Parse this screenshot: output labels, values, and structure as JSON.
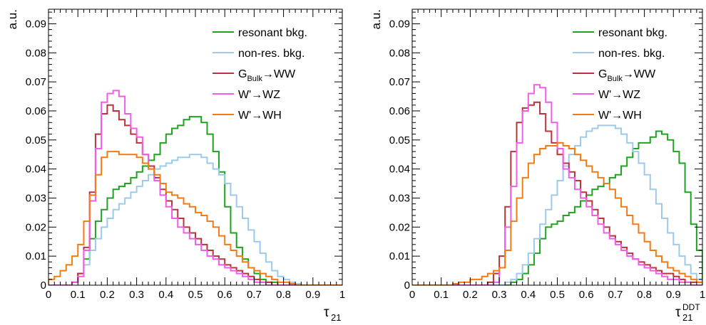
{
  "chart_data": [
    {
      "type": "line",
      "step_histogram": true,
      "ylabel": "a.u.",
      "xlabel": "τ",
      "xlabel_sub": "21",
      "xlim": [
        0,
        1
      ],
      "ylim": [
        0,
        0.095
      ],
      "x_ticks": [
        0,
        0.1,
        0.2,
        0.3,
        0.4,
        0.5,
        0.6,
        0.7,
        0.8,
        0.9,
        1
      ],
      "x_tick_labels": [
        "0",
        "0.1",
        "0.2",
        "0.3",
        "0.4",
        "0.5",
        "0.6",
        "0.7",
        "0.8",
        "0.9",
        "1"
      ],
      "y_ticks": [
        0,
        0.01,
        0.02,
        0.03,
        0.04,
        0.05,
        0.06,
        0.07,
        0.08,
        0.09
      ],
      "y_tick_labels": [
        "0",
        "0.01",
        "0.02",
        "0.03",
        "0.04",
        "0.05",
        "0.06",
        "0.07",
        "0.08",
        "0.09"
      ],
      "legend_position": "top-right",
      "bin_edges": [
        0,
        0.02,
        0.04,
        0.06,
        0.08,
        0.1,
        0.12,
        0.14,
        0.16,
        0.18,
        0.2,
        0.22,
        0.24,
        0.26,
        0.28,
        0.3,
        0.32,
        0.34,
        0.36,
        0.38,
        0.4,
        0.42,
        0.44,
        0.46,
        0.48,
        0.5,
        0.52,
        0.54,
        0.56,
        0.58,
        0.6,
        0.62,
        0.64,
        0.66,
        0.68,
        0.7,
        0.72,
        0.74,
        0.76,
        0.78,
        0.8,
        0.82,
        0.84,
        0.86,
        0.88,
        0.9,
        0.92,
        0.94,
        0.96,
        0.98,
        1.0
      ],
      "series": [
        {
          "name": "resonant bkg.",
          "color": "#1fa21f",
          "values": [
            0,
            0,
            0,
            0,
            0.001,
            0.004,
            0.009,
            0.016,
            0.022,
            0.026,
            0.03,
            0.033,
            0.034,
            0.035,
            0.037,
            0.039,
            0.041,
            0.043,
            0.045,
            0.049,
            0.052,
            0.054,
            0.055,
            0.057,
            0.058,
            0.058,
            0.056,
            0.052,
            0.046,
            0.039,
            0.027,
            0.018,
            0.013,
            0.009,
            0.006,
            0.004,
            0.002,
            0.001,
            0.001,
            0,
            0,
            0,
            0,
            0,
            0,
            0,
            0,
            0,
            0,
            0
          ]
        },
        {
          "name": "non-res. bkg.",
          "color": "#9ecae9",
          "values": [
            0,
            0,
            0,
            0,
            0.001,
            0.003,
            0.007,
            0.012,
            0.016,
            0.02,
            0.023,
            0.026,
            0.028,
            0.03,
            0.032,
            0.034,
            0.036,
            0.038,
            0.04,
            0.041,
            0.042,
            0.043,
            0.044,
            0.044,
            0.045,
            0.045,
            0.044,
            0.042,
            0.04,
            0.038,
            0.035,
            0.031,
            0.027,
            0.023,
            0.019,
            0.015,
            0.011,
            0.008,
            0.005,
            0.003,
            0.002,
            0.001,
            0.0005,
            0,
            0,
            0,
            0,
            0,
            0,
            0
          ]
        },
        {
          "name": "G_Bulk→WW",
          "name_main": "G",
          "name_sub": "Bulk",
          "name_tail": "→WW",
          "color": "#b8333a",
          "values": [
            0,
            0,
            0,
            0,
            0.001,
            0.004,
            0.013,
            0.032,
            0.052,
            0.059,
            0.062,
            0.06,
            0.057,
            0.055,
            0.052,
            0.049,
            0.045,
            0.041,
            0.037,
            0.033,
            0.029,
            0.026,
            0.023,
            0.02,
            0.018,
            0.016,
            0.014,
            0.012,
            0.01,
            0.009,
            0.007,
            0.006,
            0.005,
            0.004,
            0.003,
            0.002,
            0.001,
            0.001,
            0,
            0,
            0,
            0,
            0,
            0,
            0,
            0,
            0,
            0,
            0,
            0
          ]
        },
        {
          "name": "W'→WZ",
          "color": "#f25ce9",
          "values": [
            0,
            0,
            0,
            0,
            0.001,
            0.003,
            0.012,
            0.029,
            0.047,
            0.063,
            0.066,
            0.067,
            0.065,
            0.059,
            0.054,
            0.051,
            0.045,
            0.04,
            0.036,
            0.031,
            0.027,
            0.023,
            0.02,
            0.018,
            0.016,
            0.014,
            0.012,
            0.01,
            0.009,
            0.007,
            0.006,
            0.005,
            0.004,
            0.003,
            0.002,
            0.001,
            0.001,
            0,
            0,
            0,
            0,
            0,
            0,
            0,
            0,
            0,
            0,
            0,
            0,
            0
          ]
        },
        {
          "name": "W'→WH",
          "color": "#f47b13",
          "values": [
            0.002,
            0.003,
            0.005,
            0.007,
            0.01,
            0.014,
            0.022,
            0.031,
            0.038,
            0.044,
            0.046,
            0.046,
            0.045,
            0.045,
            0.045,
            0.044,
            0.042,
            0.04,
            0.038,
            0.035,
            0.032,
            0.031,
            0.03,
            0.028,
            0.027,
            0.025,
            0.024,
            0.022,
            0.02,
            0.017,
            0.014,
            0.012,
            0.01,
            0.008,
            0.006,
            0.005,
            0.004,
            0.003,
            0.002,
            0.001,
            0.001,
            0.0005,
            0,
            0,
            0,
            0,
            0,
            0,
            0,
            0
          ]
        }
      ]
    },
    {
      "type": "line",
      "step_histogram": true,
      "ylabel": "a.u.",
      "xlabel": "τ",
      "xlabel_sub": "21",
      "xlabel_sup": "DDT",
      "xlim": [
        0,
        1
      ],
      "ylim": [
        0,
        0.095
      ],
      "x_ticks": [
        0,
        0.1,
        0.2,
        0.3,
        0.4,
        0.5,
        0.6,
        0.7,
        0.8,
        0.9,
        1
      ],
      "x_tick_labels": [
        "0",
        "0.1",
        "0.2",
        "0.3",
        "0.4",
        "0.5",
        "0.6",
        "0.7",
        "0.8",
        "0.9",
        "1"
      ],
      "y_ticks": [
        0,
        0.01,
        0.02,
        0.03,
        0.04,
        0.05,
        0.06,
        0.07,
        0.08,
        0.09
      ],
      "y_tick_labels": [
        "0",
        "0.01",
        "0.02",
        "0.03",
        "0.04",
        "0.05",
        "0.06",
        "0.07",
        "0.08",
        "0.09"
      ],
      "legend_position": "top-right",
      "bin_edges": [
        0,
        0.02,
        0.04,
        0.06,
        0.08,
        0.1,
        0.12,
        0.14,
        0.16,
        0.18,
        0.2,
        0.22,
        0.24,
        0.26,
        0.28,
        0.3,
        0.32,
        0.34,
        0.36,
        0.38,
        0.4,
        0.42,
        0.44,
        0.46,
        0.48,
        0.5,
        0.52,
        0.54,
        0.56,
        0.58,
        0.6,
        0.62,
        0.64,
        0.66,
        0.68,
        0.7,
        0.72,
        0.74,
        0.76,
        0.78,
        0.8,
        0.82,
        0.84,
        0.86,
        0.88,
        0.9,
        0.92,
        0.94,
        0.96,
        0.98,
        1.0
      ],
      "series": [
        {
          "name": "resonant bkg.",
          "color": "#1fa21f",
          "values": [
            0,
            0,
            0,
            0,
            0,
            0,
            0,
            0,
            0,
            0,
            0,
            0,
            0,
            0,
            0,
            0,
            0,
            0.001,
            0.002,
            0.004,
            0.007,
            0.011,
            0.016,
            0.02,
            0.021,
            0.022,
            0.024,
            0.025,
            0.027,
            0.029,
            0.031,
            0.033,
            0.034,
            0.035,
            0.037,
            0.038,
            0.041,
            0.044,
            0.047,
            0.049,
            0.049,
            0.051,
            0.053,
            0.052,
            0.05,
            0.046,
            0.042,
            0.032,
            0.021,
            0.012
          ]
        },
        {
          "name": "non-res. bkg.",
          "color": "#9ecae9",
          "values": [
            0,
            0,
            0,
            0,
            0,
            0,
            0,
            0,
            0,
            0,
            0,
            0,
            0,
            0,
            0,
            0,
            0.001,
            0.002,
            0.004,
            0.007,
            0.011,
            0.016,
            0.021,
            0.026,
            0.031,
            0.036,
            0.041,
            0.045,
            0.048,
            0.051,
            0.053,
            0.054,
            0.055,
            0.055,
            0.055,
            0.054,
            0.052,
            0.049,
            0.046,
            0.042,
            0.038,
            0.033,
            0.028,
            0.023,
            0.018,
            0.014,
            0.01,
            0.007,
            0.004,
            0.002
          ]
        },
        {
          "name": "G_Bulk→WW",
          "name_main": "G",
          "name_sub": "Bulk",
          "name_tail": "→WW",
          "color": "#b8333a",
          "values": [
            0,
            0,
            0,
            0,
            0,
            0,
            0,
            0,
            0,
            0,
            0,
            0,
            0,
            0.001,
            0.004,
            0.01,
            0.027,
            0.046,
            0.056,
            0.061,
            0.062,
            0.063,
            0.059,
            0.053,
            0.049,
            0.045,
            0.042,
            0.039,
            0.036,
            0.032,
            0.029,
            0.026,
            0.023,
            0.02,
            0.017,
            0.015,
            0.013,
            0.011,
            0.009,
            0.008,
            0.007,
            0.006,
            0.005,
            0.004,
            0.004,
            0.003,
            0.002,
            0.001,
            0.001,
            0.001
          ]
        },
        {
          "name": "W'→WZ",
          "color": "#f25ce9",
          "values": [
            0,
            0,
            0,
            0,
            0,
            0,
            0,
            0,
            0,
            0,
            0,
            0,
            0,
            0,
            0.001,
            0.006,
            0.02,
            0.034,
            0.049,
            0.06,
            0.066,
            0.069,
            0.068,
            0.063,
            0.056,
            0.047,
            0.04,
            0.037,
            0.033,
            0.03,
            0.027,
            0.024,
            0.021,
            0.018,
            0.016,
            0.014,
            0.012,
            0.01,
            0.009,
            0.007,
            0.006,
            0.005,
            0.004,
            0.003,
            0.002,
            0.002,
            0.001,
            0.001,
            0,
            0
          ]
        },
        {
          "name": "W'→WH",
          "color": "#f47b13",
          "values": [
            0,
            0,
            0,
            0,
            0,
            0,
            0,
            0.0005,
            0.001,
            0.001,
            0.002,
            0.002,
            0.003,
            0.004,
            0.005,
            0.006,
            0.012,
            0.022,
            0.03,
            0.037,
            0.042,
            0.045,
            0.047,
            0.048,
            0.048,
            0.049,
            0.048,
            0.047,
            0.045,
            0.043,
            0.041,
            0.039,
            0.037,
            0.035,
            0.033,
            0.03,
            0.027,
            0.024,
            0.021,
            0.018,
            0.015,
            0.012,
            0.01,
            0.008,
            0.006,
            0.005,
            0.004,
            0.003,
            0.002,
            0.001
          ]
        }
      ]
    }
  ]
}
